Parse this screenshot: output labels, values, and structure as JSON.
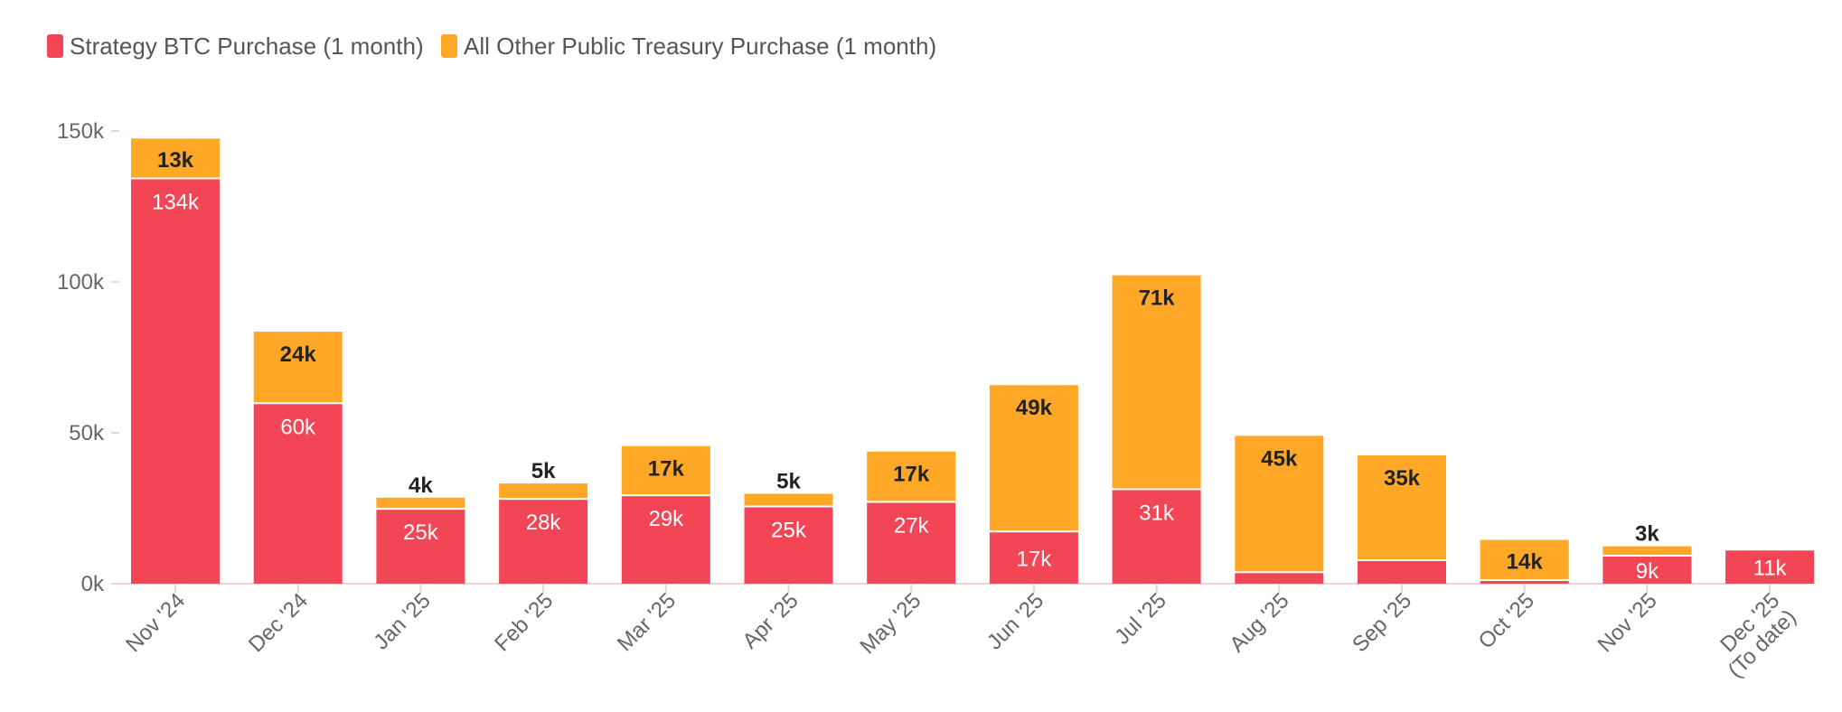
{
  "chart_data": {
    "type": "bar",
    "stacked": true,
    "title": "",
    "xlabel": "",
    "ylabel": "",
    "ylim": [
      0,
      150000
    ],
    "yticks": [
      {
        "value": 0,
        "label": "0k"
      },
      {
        "value": 50000,
        "label": "50k"
      },
      {
        "value": 100000,
        "label": "100k"
      },
      {
        "value": 150000,
        "label": "150k"
      }
    ],
    "categories": [
      [
        "Nov '24"
      ],
      [
        "Dec '24"
      ],
      [
        "Jan '25"
      ],
      [
        "Feb '25"
      ],
      [
        "Mar '25"
      ],
      [
        "Apr '25"
      ],
      [
        "May '25"
      ],
      [
        "Jun '25"
      ],
      [
        "Jul '25"
      ],
      [
        "Aug '25"
      ],
      [
        "Sep '25"
      ],
      [
        "Oct '25"
      ],
      [
        "Nov '25"
      ],
      [
        "Dec '25",
        "(To date)"
      ]
    ],
    "series": [
      {
        "name": "Strategy BTC Purchase (1 month)",
        "color": "#f24657",
        "values": [
          134000,
          59500,
          24500,
          27800,
          29000,
          25300,
          26800,
          17000,
          31000,
          3500,
          7500,
          900,
          9000,
          11000
        ],
        "labels": [
          "134k",
          "60k",
          "25k",
          "28k",
          "29k",
          "25k",
          "27k",
          "17k",
          "31k",
          null,
          null,
          null,
          "9k",
          "11k"
        ]
      },
      {
        "name": "All Other Public Treasury Purchase (1 month)",
        "color": "#ffa828",
        "values": [
          13500,
          24000,
          4000,
          5400,
          16600,
          4500,
          17000,
          48800,
          71200,
          45500,
          35000,
          13600,
          3400,
          0
        ],
        "labels": [
          "13k",
          "24k",
          "4k",
          "5k",
          "17k",
          "5k",
          "17k",
          "49k",
          "71k",
          "45k",
          "35k",
          "14k",
          "3k",
          null
        ]
      }
    ],
    "legend": "top-left",
    "grid": false
  }
}
